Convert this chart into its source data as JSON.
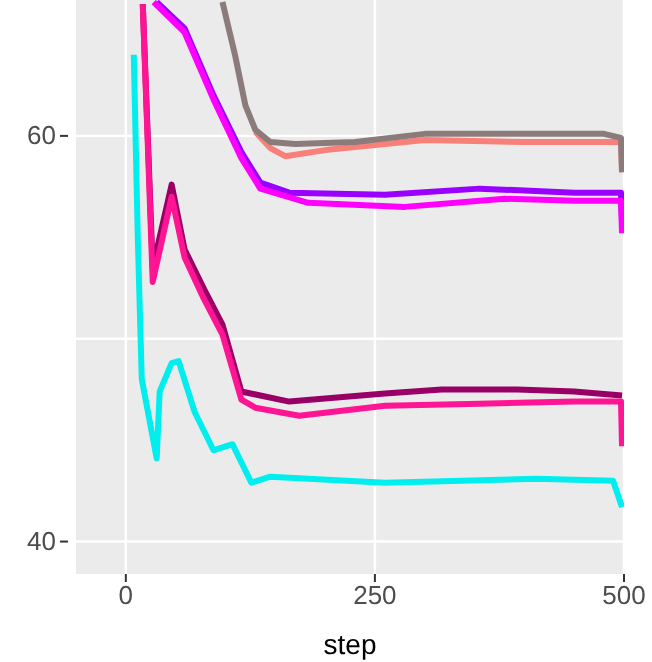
{
  "chart_data": {
    "type": "line",
    "xlabel": "step",
    "xlim": [
      -50,
      500
    ],
    "xticks": [
      0,
      250,
      500
    ],
    "ylim": [
      38.4,
      66.7
    ],
    "yticks": [
      40,
      {
        "value": 50,
        "label": null
      },
      60
    ],
    "grid": true,
    "line_style": "solid",
    "marker": "none",
    "series": [
      {
        "color": "#f88078",
        "x": [
          130,
          145,
          160,
          200,
          300,
          400,
          497,
          498
        ],
        "values": [
          60.2,
          59.4,
          59.0,
          59.3,
          59.8,
          59.7,
          59.7,
          58.3
        ]
      },
      {
        "color": "#8c7b7b",
        "x": [
          97,
          110,
          120,
          130,
          145,
          170,
          230,
          300,
          400,
          480,
          497,
          498
        ],
        "values": [
          66.6,
          63.9,
          61.5,
          60.3,
          59.7,
          59.6,
          59.7,
          60.1,
          60.1,
          60.1,
          59.9,
          58.2
        ]
      },
      {
        "color": "#9a00ff",
        "x": [
          31,
          59,
          88,
          116,
          135,
          164,
          260,
          355,
          450,
          497,
          498
        ],
        "values": [
          66.6,
          65.3,
          62.0,
          59.2,
          57.7,
          57.2,
          57.1,
          57.4,
          57.2,
          57.2,
          55.8
        ]
      },
      {
        "color": "#ff00ff",
        "x": [
          28,
          59,
          88,
          116,
          135,
          183,
          280,
          380,
          450,
          497,
          498
        ],
        "values": [
          66.6,
          65.1,
          61.8,
          58.9,
          57.4,
          56.7,
          56.5,
          56.9,
          56.8,
          56.8,
          55.2
        ]
      },
      {
        "color": "#990066",
        "x": [
          17,
          27,
          46,
          59,
          78,
          97,
          116,
          135,
          164,
          260,
          317,
          393,
          450,
          498
        ],
        "values": [
          66.5,
          53.5,
          57.6,
          54.4,
          52.5,
          50.7,
          47.4,
          47.2,
          46.9,
          47.3,
          47.5,
          47.5,
          47.4,
          47.2
        ]
      },
      {
        "color": "#ff1493",
        "x": [
          17,
          27,
          46,
          59,
          78,
          97,
          116,
          130,
          174,
          260,
          355,
          450,
          497,
          498
        ],
        "values": [
          66.5,
          52.8,
          57.0,
          54.0,
          52.0,
          50.2,
          47.0,
          46.6,
          46.2,
          46.7,
          46.8,
          46.9,
          46.9,
          44.7
        ]
      },
      {
        "color": "#00eeee",
        "x": [
          8,
          12,
          16,
          31,
          34,
          46,
          53,
          69,
          88,
          107,
          126,
          145,
          260,
          412,
          489,
          498
        ],
        "values": [
          64,
          55,
          48,
          44.1,
          47.4,
          48.8,
          48.9,
          46.4,
          44.5,
          44.8,
          42.9,
          43.2,
          42.9,
          43.1,
          43.0,
          41.7
        ]
      }
    ]
  }
}
